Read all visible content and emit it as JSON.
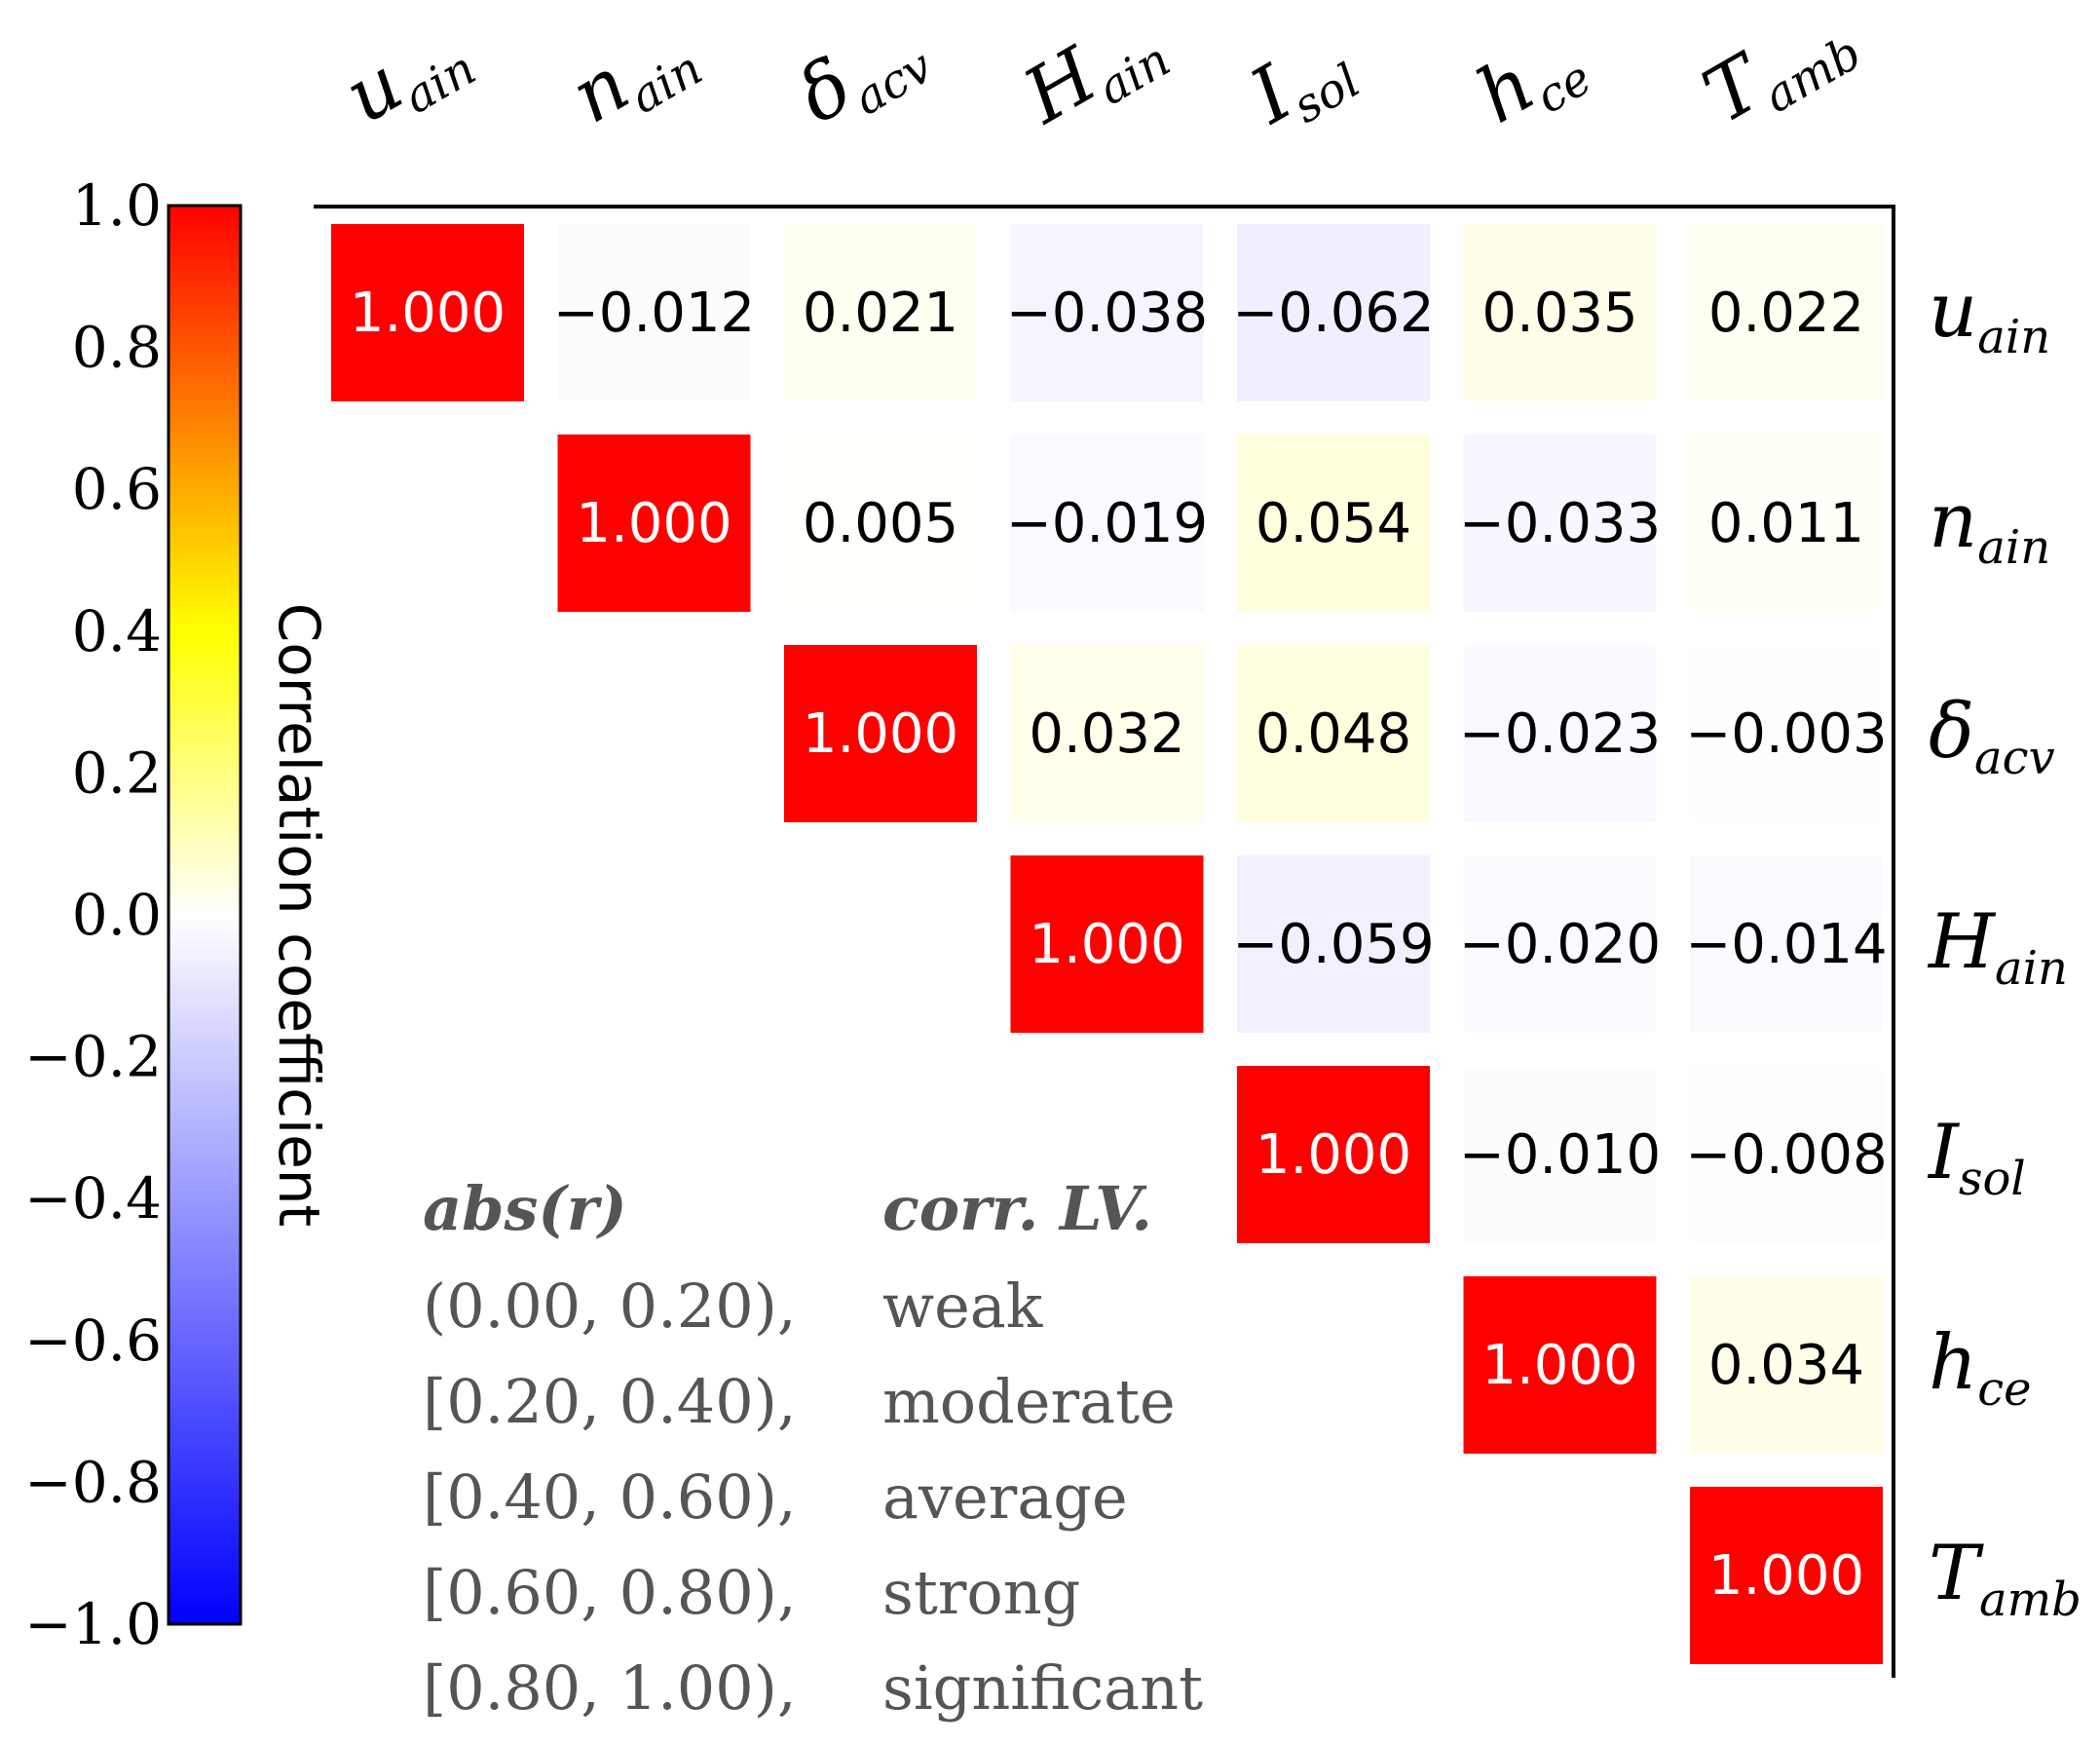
{
  "chart_data": {
    "type": "heatmap",
    "variables": [
      {
        "base": "u",
        "sub": "ain"
      },
      {
        "base": "n",
        "sub": "ain"
      },
      {
        "base": "δ",
        "sub": "acv"
      },
      {
        "base": "H",
        "sub": "ain"
      },
      {
        "base": "I",
        "sub": "sol"
      },
      {
        "base": "h",
        "sub": "ce"
      },
      {
        "base": "T",
        "sub": "amb"
      }
    ],
    "matrix": [
      [
        1.0,
        -0.012,
        0.021,
        -0.038,
        -0.062,
        0.035,
        0.022
      ],
      [
        null,
        1.0,
        0.005,
        -0.019,
        0.054,
        -0.033,
        0.011
      ],
      [
        null,
        null,
        1.0,
        0.032,
        0.048,
        -0.023,
        -0.003
      ],
      [
        null,
        null,
        null,
        1.0,
        -0.059,
        -0.02,
        -0.014
      ],
      [
        null,
        null,
        null,
        null,
        1.0,
        -0.01,
        -0.008
      ],
      [
        null,
        null,
        null,
        null,
        null,
        1.0,
        0.034
      ],
      [
        null,
        null,
        null,
        null,
        null,
        null,
        1.0
      ]
    ],
    "cell_labels": [
      [
        "1.000",
        "−0.012",
        "0.021",
        "−0.038",
        "−0.062",
        "0.035",
        "0.022"
      ],
      [
        "",
        "1.000",
        "0.005",
        "−0.019",
        "0.054",
        "−0.033",
        "0.011"
      ],
      [
        "",
        "",
        "1.000",
        "0.032",
        "0.048",
        "−0.023",
        "−0.003"
      ],
      [
        "",
        "",
        "",
        "1.000",
        "−0.059",
        "−0.020",
        "−0.014"
      ],
      [
        "",
        "",
        "",
        "",
        "1.000",
        "−0.010",
        "−0.008"
      ],
      [
        "",
        "",
        "",
        "",
        "",
        "1.000",
        "0.034"
      ],
      [
        "",
        "",
        "",
        "",
        "",
        "",
        "1.000"
      ]
    ],
    "colorbar": {
      "label": "Correlation coefficient",
      "range": [
        -1.0,
        1.0
      ],
      "ticks": [
        "1.0",
        "0.8",
        "0.6",
        "0.4",
        "0.2",
        "0.0",
        "−0.2",
        "−0.4",
        "−0.6",
        "−0.8",
        "−1.0"
      ],
      "colormap_stops": [
        "#0000ff",
        "#ffffff",
        "#ffff00",
        "#ff8000",
        "#ff0000"
      ]
    },
    "legend_table": {
      "header_range": "abs(r)",
      "header_level": "corr. LV.",
      "rows": [
        {
          "range": "(0.00, 0.20),",
          "level": "weak"
        },
        {
          "range": "[0.20, 0.40),",
          "level": "moderate"
        },
        {
          "range": "[0.40, 0.60),",
          "level": "average"
        },
        {
          "range": "[0.60, 0.80),",
          "level": "strong"
        },
        {
          "range": "[0.80, 1.00),",
          "level": "significant"
        }
      ]
    },
    "colors": {
      "diagonal": "#ff0000",
      "text": "#000000",
      "legend_text": "#555555",
      "axis": "#000000"
    }
  }
}
